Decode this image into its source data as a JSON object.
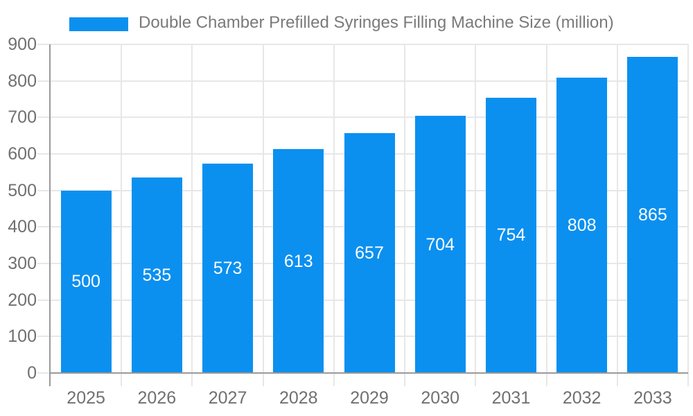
{
  "chart_data": {
    "type": "bar",
    "title": "Double Chamber Prefilled Syringes Filling Machine Size (million)",
    "categories": [
      "2025",
      "2026",
      "2027",
      "2028",
      "2029",
      "2030",
      "2031",
      "2032",
      "2033"
    ],
    "values": [
      500,
      535,
      573,
      613,
      657,
      704,
      754,
      808,
      865
    ],
    "ylim": [
      0,
      900
    ],
    "y_ticks": [
      0,
      100,
      200,
      300,
      400,
      500,
      600,
      700,
      800,
      900
    ],
    "grid": true,
    "legend_position": "top",
    "value_label_position": "inside-center",
    "colors": {
      "bar": "#0b90f0",
      "value_label": "#ffffff",
      "axis_line": "#9a9a9a",
      "gridline": "#e7e7e7",
      "tick_label": "#707070",
      "title": "#7a7a7a",
      "background": "#ffffff"
    }
  }
}
